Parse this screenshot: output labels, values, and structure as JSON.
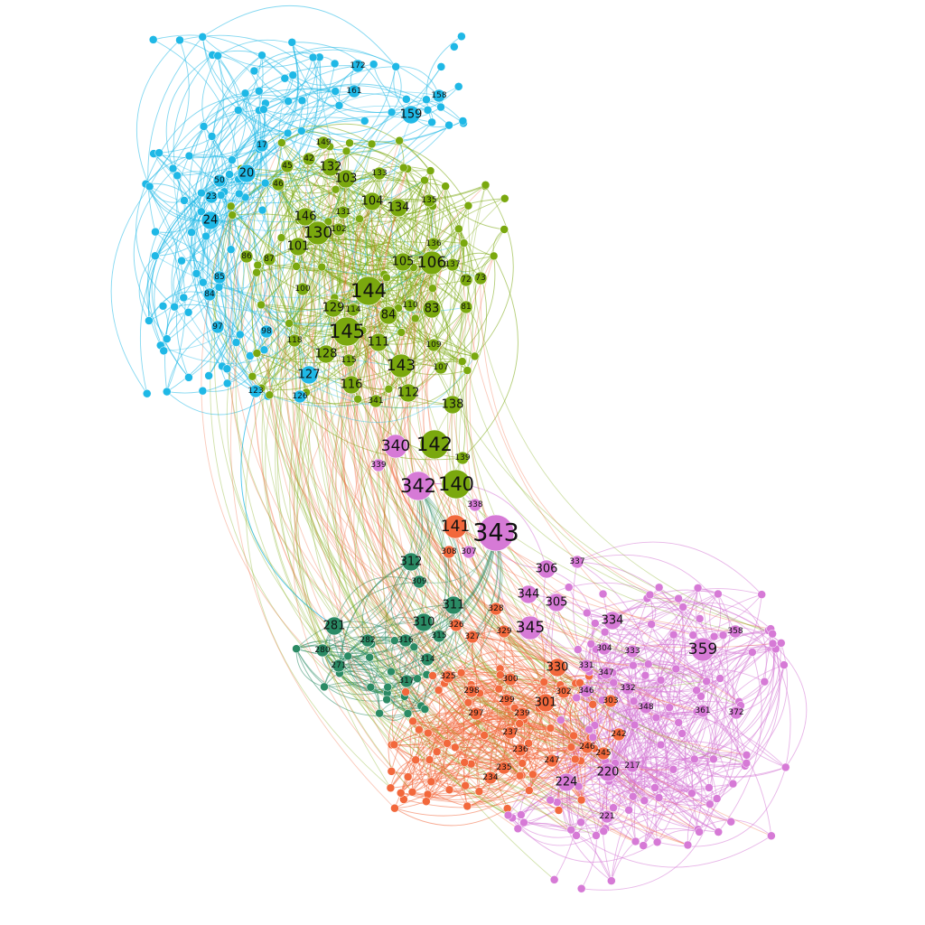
{
  "colors": {
    "cyan": "#1fb8e6",
    "green": "#7aa80e",
    "teal": "#2a8a64",
    "orange": "#f2683c",
    "magenta": "#d67ad6"
  },
  "nodes": [
    {
      "id": "159",
      "community": "cyan",
      "size": "medium"
    },
    {
      "id": "172",
      "community": "cyan",
      "size": "small"
    },
    {
      "id": "161",
      "community": "cyan",
      "size": "small"
    },
    {
      "id": "158",
      "community": "cyan",
      "size": "small"
    },
    {
      "id": "20",
      "community": "cyan",
      "size": "medium"
    },
    {
      "id": "50",
      "community": "cyan",
      "size": "small"
    },
    {
      "id": "24",
      "community": "cyan",
      "size": "medium"
    },
    {
      "id": "17",
      "community": "cyan",
      "size": "small"
    },
    {
      "id": "23",
      "community": "cyan",
      "size": "small"
    },
    {
      "id": "85",
      "community": "cyan",
      "size": "small"
    },
    {
      "id": "84",
      "community": "cyan",
      "size": "small"
    },
    {
      "id": "97",
      "community": "cyan",
      "size": "small"
    },
    {
      "id": "98",
      "community": "cyan",
      "size": "small"
    },
    {
      "id": "127",
      "community": "cyan",
      "size": "medium"
    },
    {
      "id": "123",
      "community": "cyan",
      "size": "small"
    },
    {
      "id": "126",
      "community": "cyan",
      "size": "small"
    },
    {
      "id": "149",
      "community": "green",
      "size": "small"
    },
    {
      "id": "145",
      "community": "green",
      "size": "xlarge"
    },
    {
      "id": "42",
      "community": "green",
      "size": "small"
    },
    {
      "id": "45",
      "community": "green",
      "size": "small"
    },
    {
      "id": "132",
      "community": "green",
      "size": "medium"
    },
    {
      "id": "133",
      "community": "green",
      "size": "small"
    },
    {
      "id": "46",
      "community": "green",
      "size": "small"
    },
    {
      "id": "103",
      "community": "green",
      "size": "medium"
    },
    {
      "id": "104",
      "community": "green",
      "size": "medium"
    },
    {
      "id": "134",
      "community": "green",
      "size": "medium"
    },
    {
      "id": "135",
      "community": "green",
      "size": "small"
    },
    {
      "id": "146",
      "community": "green",
      "size": "medium"
    },
    {
      "id": "131",
      "community": "green",
      "size": "small"
    },
    {
      "id": "130",
      "community": "green",
      "size": "large"
    },
    {
      "id": "102",
      "community": "green",
      "size": "small"
    },
    {
      "id": "101",
      "community": "green",
      "size": "medium"
    },
    {
      "id": "136",
      "community": "green",
      "size": "small"
    },
    {
      "id": "86",
      "community": "green",
      "size": "small"
    },
    {
      "id": "87",
      "community": "green",
      "size": "small"
    },
    {
      "id": "105",
      "community": "green",
      "size": "medium"
    },
    {
      "id": "106",
      "community": "green",
      "size": "large"
    },
    {
      "id": "137",
      "community": "green",
      "size": "small"
    },
    {
      "id": "144",
      "community": "green",
      "size": "xlarge"
    },
    {
      "id": "100",
      "community": "green",
      "size": "small"
    },
    {
      "id": "129",
      "community": "green",
      "size": "medium"
    },
    {
      "id": "114",
      "community": "green",
      "size": "small"
    },
    {
      "id": "84",
      "community": "green",
      "size": "medium"
    },
    {
      "id": "110",
      "community": "green",
      "size": "small"
    },
    {
      "id": "83",
      "community": "green",
      "size": "medium"
    },
    {
      "id": "111",
      "community": "green",
      "size": "medium"
    },
    {
      "id": "109",
      "community": "green",
      "size": "small"
    },
    {
      "id": "118",
      "community": "green",
      "size": "small"
    },
    {
      "id": "128",
      "community": "green",
      "size": "medium"
    },
    {
      "id": "115",
      "community": "green",
      "size": "small"
    },
    {
      "id": "143",
      "community": "green",
      "size": "large"
    },
    {
      "id": "107",
      "community": "green",
      "size": "small"
    },
    {
      "id": "116",
      "community": "green",
      "size": "medium"
    },
    {
      "id": "341",
      "community": "green",
      "size": "small"
    },
    {
      "id": "112",
      "community": "green",
      "size": "medium"
    },
    {
      "id": "138",
      "community": "green",
      "size": "medium"
    },
    {
      "id": "142",
      "community": "green",
      "size": "xlarge"
    },
    {
      "id": "139",
      "community": "green",
      "size": "small"
    },
    {
      "id": "140",
      "community": "green",
      "size": "xlarge"
    },
    {
      "id": "72",
      "community": "green",
      "size": "small"
    },
    {
      "id": "73",
      "community": "green",
      "size": "small"
    },
    {
      "id": "81",
      "community": "green",
      "size": "small"
    },
    {
      "id": "340",
      "community": "magenta",
      "size": "large"
    },
    {
      "id": "339",
      "community": "magenta",
      "size": "small"
    },
    {
      "id": "342",
      "community": "magenta",
      "size": "xlarge"
    },
    {
      "id": "338",
      "community": "magenta",
      "size": "small"
    },
    {
      "id": "343",
      "community": "magenta",
      "size": "xxlarge"
    },
    {
      "id": "307",
      "community": "magenta",
      "size": "small"
    },
    {
      "id": "306",
      "community": "magenta",
      "size": "medium"
    },
    {
      "id": "337",
      "community": "magenta",
      "size": "small"
    },
    {
      "id": "344",
      "community": "magenta",
      "size": "medium"
    },
    {
      "id": "305",
      "community": "magenta",
      "size": "medium"
    },
    {
      "id": "345",
      "community": "magenta",
      "size": "large"
    },
    {
      "id": "334",
      "community": "magenta",
      "size": "medium"
    },
    {
      "id": "358",
      "community": "magenta",
      "size": "small"
    },
    {
      "id": "359",
      "community": "magenta",
      "size": "large"
    },
    {
      "id": "304",
      "community": "magenta",
      "size": "small"
    },
    {
      "id": "333",
      "community": "magenta",
      "size": "small"
    },
    {
      "id": "331",
      "community": "magenta",
      "size": "small"
    },
    {
      "id": "347",
      "community": "magenta",
      "size": "small"
    },
    {
      "id": "346",
      "community": "magenta",
      "size": "small"
    },
    {
      "id": "332",
      "community": "magenta",
      "size": "small"
    },
    {
      "id": "348",
      "community": "magenta",
      "size": "small"
    },
    {
      "id": "361",
      "community": "magenta",
      "size": "small"
    },
    {
      "id": "372",
      "community": "magenta",
      "size": "small"
    },
    {
      "id": "220",
      "community": "magenta",
      "size": "medium"
    },
    {
      "id": "217",
      "community": "magenta",
      "size": "small"
    },
    {
      "id": "224",
      "community": "magenta",
      "size": "medium"
    },
    {
      "id": "221",
      "community": "magenta",
      "size": "small"
    },
    {
      "id": "141",
      "community": "orange",
      "size": "large"
    },
    {
      "id": "308",
      "community": "orange",
      "size": "small"
    },
    {
      "id": "328",
      "community": "orange",
      "size": "small"
    },
    {
      "id": "326",
      "community": "orange",
      "size": "small"
    },
    {
      "id": "327",
      "community": "orange",
      "size": "small"
    },
    {
      "id": "329",
      "community": "orange",
      "size": "small"
    },
    {
      "id": "330",
      "community": "orange",
      "size": "medium"
    },
    {
      "id": "325",
      "community": "orange",
      "size": "small"
    },
    {
      "id": "300",
      "community": "orange",
      "size": "small"
    },
    {
      "id": "302",
      "community": "orange",
      "size": "small"
    },
    {
      "id": "298",
      "community": "orange",
      "size": "small"
    },
    {
      "id": "299",
      "community": "orange",
      "size": "small"
    },
    {
      "id": "301",
      "community": "orange",
      "size": "medium"
    },
    {
      "id": "303",
      "community": "orange",
      "size": "small"
    },
    {
      "id": "297",
      "community": "orange",
      "size": "small"
    },
    {
      "id": "239",
      "community": "orange",
      "size": "small"
    },
    {
      "id": "237",
      "community": "orange",
      "size": "small"
    },
    {
      "id": "242",
      "community": "orange",
      "size": "small"
    },
    {
      "id": "236",
      "community": "orange",
      "size": "small"
    },
    {
      "id": "246",
      "community": "orange",
      "size": "small"
    },
    {
      "id": "245",
      "community": "orange",
      "size": "small"
    },
    {
      "id": "247",
      "community": "orange",
      "size": "small"
    },
    {
      "id": "235",
      "community": "orange",
      "size": "small"
    },
    {
      "id": "234",
      "community": "orange",
      "size": "small"
    },
    {
      "id": "312",
      "community": "teal",
      "size": "medium"
    },
    {
      "id": "309",
      "community": "teal",
      "size": "small"
    },
    {
      "id": "311",
      "community": "teal",
      "size": "medium"
    },
    {
      "id": "281",
      "community": "teal",
      "size": "medium"
    },
    {
      "id": "310",
      "community": "teal",
      "size": "medium"
    },
    {
      "id": "282",
      "community": "teal",
      "size": "small"
    },
    {
      "id": "316",
      "community": "teal",
      "size": "small"
    },
    {
      "id": "315",
      "community": "teal",
      "size": "small"
    },
    {
      "id": "314",
      "community": "teal",
      "size": "small"
    },
    {
      "id": "317",
      "community": "teal",
      "size": "small"
    },
    {
      "id": "280",
      "community": "teal",
      "size": "small"
    },
    {
      "id": "271",
      "community": "teal",
      "size": "small"
    }
  ]
}
